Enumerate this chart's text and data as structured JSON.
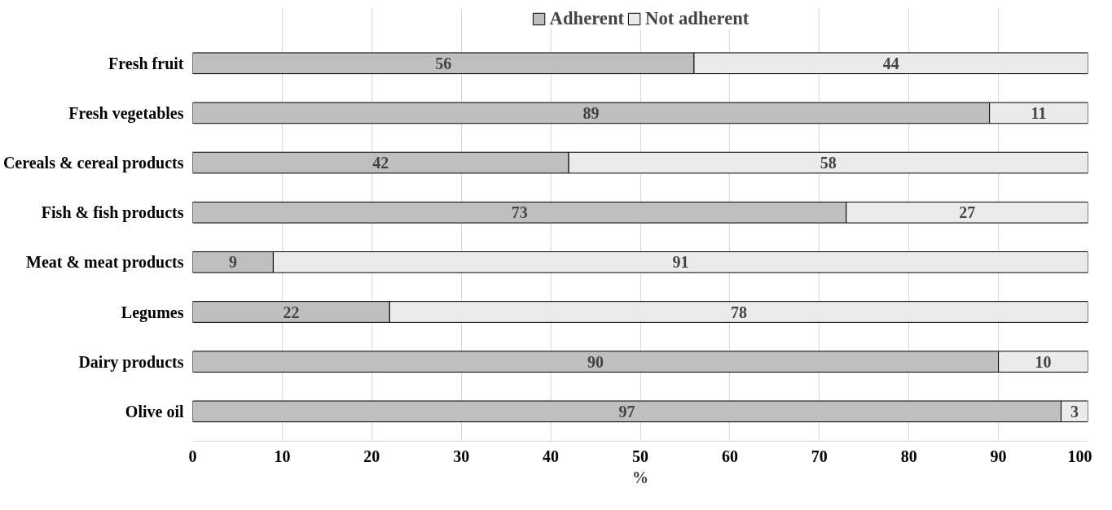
{
  "chart_data": {
    "type": "bar",
    "orientation": "horizontal",
    "stacked": true,
    "categories": [
      "Fresh fruit",
      "Fresh vegetables",
      "Cereals & cereal products",
      "Fish & fish products",
      "Meat & meat products",
      "Legumes",
      "Dairy products",
      "Olive oil"
    ],
    "series": [
      {
        "name": "Adherent",
        "color": "#bfbfbf",
        "values": [
          56,
          89,
          42,
          73,
          9,
          22,
          90,
          97
        ]
      },
      {
        "name": "Not adherent",
        "color": "#ebebeb",
        "values": [
          44,
          11,
          58,
          27,
          91,
          78,
          10,
          3
        ]
      }
    ],
    "xlabel": "%",
    "xlim": [
      0,
      100
    ],
    "xticks": [
      0,
      10,
      20,
      30,
      40,
      50,
      60,
      70,
      80,
      90,
      100
    ],
    "grid": "x",
    "legend": "top",
    "data_labels": true
  }
}
